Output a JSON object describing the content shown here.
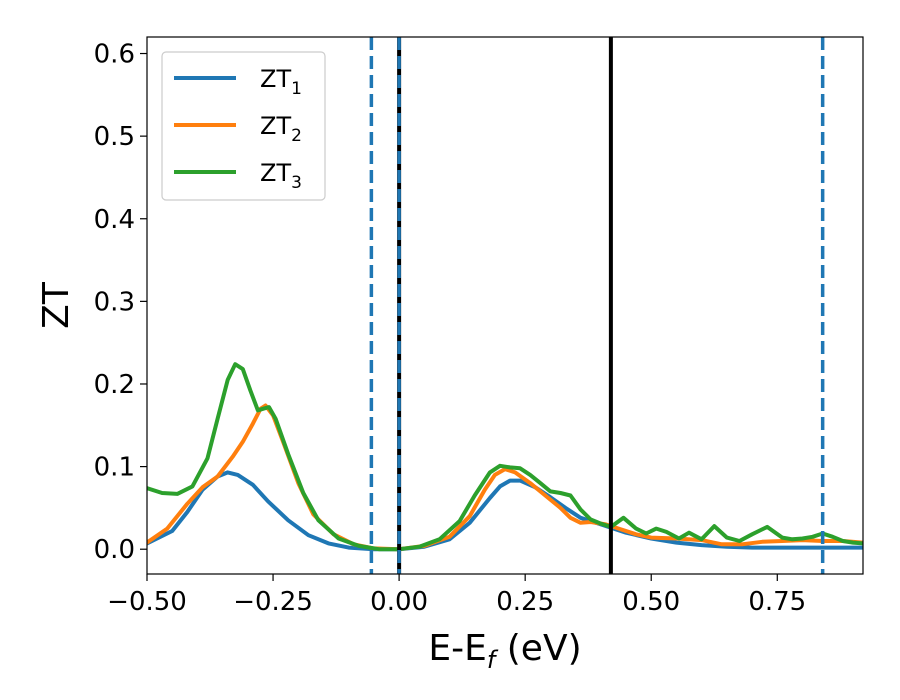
{
  "chart_data": {
    "type": "line",
    "xlabel": "E-E",
    "xlabel_sub": "f",
    "xlabel_unit": " (eV)",
    "ylabel": "ZT",
    "xlim": [
      -0.5,
      0.92
    ],
    "ylim": [
      -0.03,
      0.62
    ],
    "xticks": [
      -0.5,
      -0.25,
      0.0,
      0.25,
      0.5,
      0.75
    ],
    "xtick_labels": [
      "−0.50",
      "−0.25",
      "0.00",
      "0.25",
      "0.50",
      "0.75"
    ],
    "yticks": [
      0.0,
      0.1,
      0.2,
      0.3,
      0.4,
      0.5,
      0.6
    ],
    "ytick_labels": [
      "0.0",
      "0.1",
      "0.2",
      "0.3",
      "0.4",
      "0.5",
      "0.6"
    ],
    "legend_position": "upper-left",
    "series": [
      {
        "label": "ZT",
        "sub": "1",
        "color": "#1f77b4",
        "points": [
          [
            -0.5,
            0.007
          ],
          [
            -0.45,
            0.022
          ],
          [
            -0.42,
            0.045
          ],
          [
            -0.39,
            0.072
          ],
          [
            -0.36,
            0.088
          ],
          [
            -0.34,
            0.093
          ],
          [
            -0.32,
            0.09
          ],
          [
            -0.29,
            0.078
          ],
          [
            -0.26,
            0.058
          ],
          [
            -0.22,
            0.035
          ],
          [
            -0.18,
            0.017
          ],
          [
            -0.14,
            0.007
          ],
          [
            -0.1,
            0.002
          ],
          [
            -0.05,
            0.0
          ],
          [
            0.0,
            0.0
          ],
          [
            0.05,
            0.003
          ],
          [
            0.1,
            0.012
          ],
          [
            0.14,
            0.032
          ],
          [
            0.18,
            0.062
          ],
          [
            0.2,
            0.076
          ],
          [
            0.22,
            0.083
          ],
          [
            0.24,
            0.083
          ],
          [
            0.27,
            0.075
          ],
          [
            0.3,
            0.063
          ],
          [
            0.33,
            0.05
          ],
          [
            0.36,
            0.038
          ],
          [
            0.4,
            0.03
          ],
          [
            0.45,
            0.02
          ],
          [
            0.5,
            0.013
          ],
          [
            0.55,
            0.008
          ],
          [
            0.6,
            0.005
          ],
          [
            0.65,
            0.003
          ],
          [
            0.7,
            0.002
          ],
          [
            0.75,
            0.002
          ],
          [
            0.8,
            0.002
          ],
          [
            0.85,
            0.002
          ],
          [
            0.92,
            0.002
          ]
        ]
      },
      {
        "label": "ZT",
        "sub": "2",
        "color": "#ff7f0e",
        "points": [
          [
            -0.5,
            0.008
          ],
          [
            -0.46,
            0.025
          ],
          [
            -0.42,
            0.055
          ],
          [
            -0.39,
            0.075
          ],
          [
            -0.36,
            0.088
          ],
          [
            -0.33,
            0.112
          ],
          [
            -0.31,
            0.13
          ],
          [
            -0.29,
            0.152
          ],
          [
            -0.275,
            0.17
          ],
          [
            -0.265,
            0.174
          ],
          [
            -0.25,
            0.162
          ],
          [
            -0.23,
            0.13
          ],
          [
            -0.2,
            0.08
          ],
          [
            -0.17,
            0.042
          ],
          [
            -0.13,
            0.018
          ],
          [
            -0.09,
            0.006
          ],
          [
            -0.05,
            0.001
          ],
          [
            0.0,
            0.0
          ],
          [
            0.05,
            0.004
          ],
          [
            0.1,
            0.015
          ],
          [
            0.14,
            0.04
          ],
          [
            0.17,
            0.072
          ],
          [
            0.19,
            0.09
          ],
          [
            0.21,
            0.097
          ],
          [
            0.23,
            0.093
          ],
          [
            0.26,
            0.08
          ],
          [
            0.29,
            0.065
          ],
          [
            0.32,
            0.05
          ],
          [
            0.34,
            0.038
          ],
          [
            0.36,
            0.032
          ],
          [
            0.38,
            0.033
          ],
          [
            0.41,
            0.03
          ],
          [
            0.44,
            0.024
          ],
          [
            0.47,
            0.018
          ],
          [
            0.5,
            0.014
          ],
          [
            0.55,
            0.013
          ],
          [
            0.6,
            0.011
          ],
          [
            0.64,
            0.006
          ],
          [
            0.68,
            0.006
          ],
          [
            0.72,
            0.009
          ],
          [
            0.76,
            0.01
          ],
          [
            0.8,
            0.011
          ],
          [
            0.84,
            0.01
          ],
          [
            0.88,
            0.01
          ],
          [
            0.92,
            0.008
          ]
        ]
      },
      {
        "label": "ZT",
        "sub": "3",
        "color": "#2ca02c",
        "points": [
          [
            -0.5,
            0.074
          ],
          [
            -0.47,
            0.068
          ],
          [
            -0.44,
            0.067
          ],
          [
            -0.41,
            0.076
          ],
          [
            -0.38,
            0.11
          ],
          [
            -0.36,
            0.158
          ],
          [
            -0.34,
            0.205
          ],
          [
            -0.325,
            0.224
          ],
          [
            -0.31,
            0.218
          ],
          [
            -0.295,
            0.192
          ],
          [
            -0.28,
            0.168
          ],
          [
            -0.27,
            0.17
          ],
          [
            -0.258,
            0.172
          ],
          [
            -0.245,
            0.158
          ],
          [
            -0.22,
            0.115
          ],
          [
            -0.19,
            0.068
          ],
          [
            -0.16,
            0.035
          ],
          [
            -0.12,
            0.013
          ],
          [
            -0.08,
            0.004
          ],
          [
            -0.04,
            0.0
          ],
          [
            0.0,
            0.0
          ],
          [
            0.04,
            0.003
          ],
          [
            0.08,
            0.012
          ],
          [
            0.12,
            0.034
          ],
          [
            0.15,
            0.065
          ],
          [
            0.18,
            0.093
          ],
          [
            0.2,
            0.101
          ],
          [
            0.22,
            0.099
          ],
          [
            0.24,
            0.098
          ],
          [
            0.26,
            0.09
          ],
          [
            0.28,
            0.08
          ],
          [
            0.3,
            0.07
          ],
          [
            0.32,
            0.068
          ],
          [
            0.34,
            0.065
          ],
          [
            0.36,
            0.048
          ],
          [
            0.38,
            0.036
          ],
          [
            0.4,
            0.031
          ],
          [
            0.42,
            0.027
          ],
          [
            0.445,
            0.038
          ],
          [
            0.47,
            0.025
          ],
          [
            0.49,
            0.019
          ],
          [
            0.51,
            0.025
          ],
          [
            0.53,
            0.021
          ],
          [
            0.555,
            0.013
          ],
          [
            0.575,
            0.02
          ],
          [
            0.6,
            0.012
          ],
          [
            0.625,
            0.028
          ],
          [
            0.65,
            0.014
          ],
          [
            0.675,
            0.01
          ],
          [
            0.7,
            0.018
          ],
          [
            0.73,
            0.027
          ],
          [
            0.76,
            0.014
          ],
          [
            0.78,
            0.012
          ],
          [
            0.8,
            0.013
          ],
          [
            0.82,
            0.015
          ],
          [
            0.84,
            0.019
          ],
          [
            0.86,
            0.015
          ],
          [
            0.88,
            0.01
          ],
          [
            0.9,
            0.008
          ],
          [
            0.92,
            0.007
          ]
        ]
      }
    ],
    "vlines": [
      {
        "x": -0.055,
        "color": "#1f77b4",
        "style": "dashed"
      },
      {
        "x": 0.0,
        "color": "#000000",
        "style": "solid"
      },
      {
        "x": 0.0,
        "color": "#1f77b4",
        "style": "dashed"
      },
      {
        "x": 0.42,
        "color": "#000000",
        "style": "solid"
      },
      {
        "x": 0.84,
        "color": "#1f77b4",
        "style": "dashed"
      }
    ]
  }
}
